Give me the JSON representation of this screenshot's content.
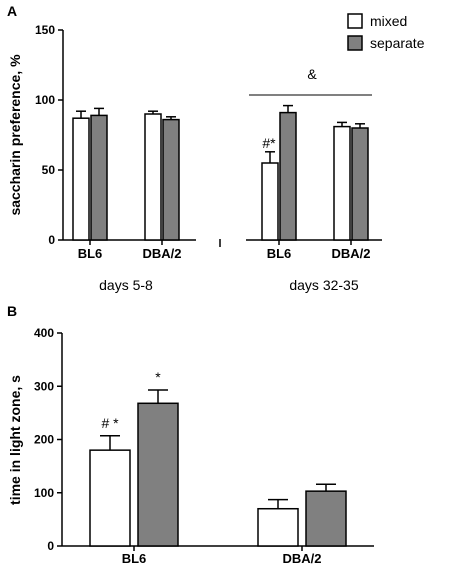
{
  "chart_data": [
    {
      "panel": "A",
      "type": "bar",
      "ylabel": "saccharin preference, %",
      "ylim": [
        0,
        150
      ],
      "yticks": [
        "0",
        "50",
        "100",
        "150"
      ],
      "categories": [
        "BL6",
        "DBA/2",
        "BL6",
        "DBA/2"
      ],
      "groups": [
        "days 5-8",
        "days 32-35"
      ],
      "series": [
        {
          "name": "mixed",
          "color": "#ffffff",
          "values": [
            87,
            90,
            55,
            81
          ],
          "errors": [
            5,
            2,
            8,
            3
          ]
        },
        {
          "name": "separate",
          "color": "#808080",
          "values": [
            89,
            86,
            91,
            80
          ],
          "errors": [
            5,
            2,
            5,
            3
          ]
        }
      ],
      "annotations": [
        {
          "text": "#*",
          "category_index": 2,
          "series_index": 0
        },
        {
          "text": "&",
          "over_group": 1
        }
      ],
      "legend": {
        "position": "top-right",
        "entries": [
          "mixed",
          "separate"
        ]
      }
    },
    {
      "panel": "B",
      "type": "bar",
      "ylabel": "time in light zone, s",
      "ylim": [
        0,
        400
      ],
      "yticks": [
        "0",
        "100",
        "200",
        "300",
        "400"
      ],
      "categories": [
        "BL6",
        "DBA/2"
      ],
      "series": [
        {
          "name": "mixed",
          "color": "#ffffff",
          "values": [
            180,
            70
          ],
          "errors": [
            27,
            17
          ]
        },
        {
          "name": "separate",
          "color": "#808080",
          "values": [
            268,
            103
          ],
          "errors": [
            25,
            13
          ]
        }
      ],
      "annotations": [
        {
          "text": "# *",
          "category_index": 0,
          "series_index": 0
        },
        {
          "text": "*",
          "category_index": 0,
          "series_index": 1
        }
      ]
    }
  ]
}
